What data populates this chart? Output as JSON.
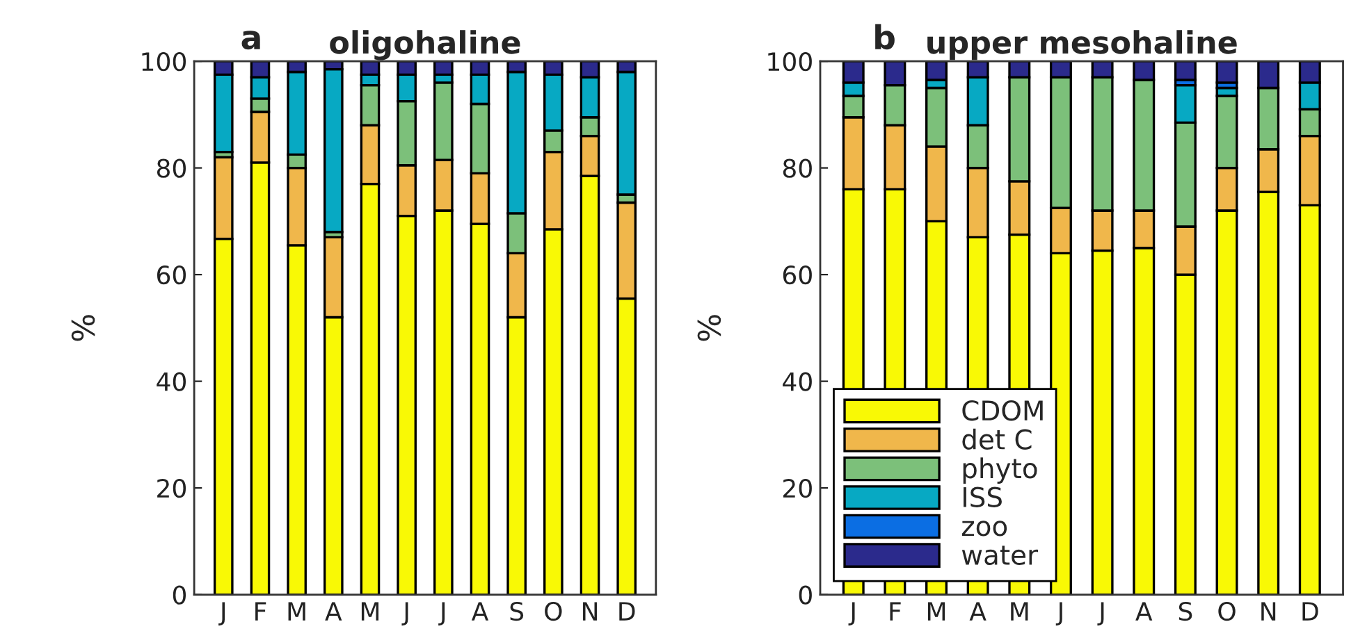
{
  "chart_data": [
    {
      "type": "bar",
      "stacked": true,
      "title": "oligohaline",
      "annotations": [
        "a"
      ],
      "ylabel": "%",
      "categories": [
        "J",
        "F",
        "M",
        "A",
        "M",
        "J",
        "J",
        "A",
        "S",
        "O",
        "N",
        "D"
      ],
      "ylim": [
        0,
        100
      ],
      "yticks": [
        0,
        20,
        40,
        60,
        80,
        100
      ],
      "grid": false,
      "legend": false,
      "series": [
        {
          "color": "#f9f905",
          "values": [
            66.7,
            81,
            65.5,
            52,
            77,
            71,
            72,
            69.5,
            52,
            68.5,
            78.5,
            55.5
          ]
        },
        {
          "color": "#f0b74b",
          "values": [
            15.3,
            9.5,
            14.5,
            15,
            11,
            9.5,
            9.5,
            9.5,
            12,
            14.5,
            7.5,
            18
          ]
        },
        {
          "color": "#7cc07a",
          "values": [
            1,
            2.5,
            2.5,
            1,
            7.5,
            12,
            14.5,
            13,
            7.5,
            4,
            3.5,
            1.5
          ]
        },
        {
          "color": "#07a9c3",
          "values": [
            14.5,
            4,
            15.5,
            30.5,
            2,
            5,
            1.5,
            5.5,
            26.5,
            10.5,
            7.5,
            23
          ]
        },
        {
          "color": "#2b2a8c",
          "values": [
            2.5,
            3,
            2,
            1.5,
            2.5,
            2.5,
            2.5,
            2.5,
            2,
            2.5,
            3,
            2
          ]
        }
      ]
    },
    {
      "type": "bar",
      "stacked": true,
      "title": "upper mesohaline",
      "annotations": [
        "b"
      ],
      "ylabel": "%",
      "categories": [
        "J",
        "F",
        "M",
        "A",
        "M",
        "J",
        "J",
        "A",
        "S",
        "O",
        "N",
        "D"
      ],
      "ylim": [
        0,
        100
      ],
      "yticks": [
        0,
        20,
        40,
        60,
        80,
        100
      ],
      "grid": false,
      "legend": "lower left",
      "series": [
        {
          "name": "CDOM",
          "color": "#f9f905",
          "values": [
            76,
            76,
            70,
            67,
            67.5,
            64,
            64.5,
            65,
            60,
            72,
            75.5,
            73
          ]
        },
        {
          "name": "det C",
          "color": "#f0b74b",
          "values": [
            13.5,
            12,
            14,
            13,
            10,
            8.5,
            7.5,
            7,
            9,
            8,
            8,
            13
          ]
        },
        {
          "name": "phyto",
          "color": "#7cc07a",
          "values": [
            4,
            7.5,
            11,
            8,
            19.5,
            24.5,
            25,
            24.5,
            19.5,
            13.5,
            11.5,
            5
          ]
        },
        {
          "name": "ISS",
          "color": "#07a9c3",
          "values": [
            2.5,
            null,
            1.5,
            9,
            null,
            null,
            null,
            null,
            7,
            1.5,
            null,
            5
          ]
        },
        {
          "name": "zoo",
          "color": "#0b6ee3",
          "values": [
            null,
            null,
            null,
            null,
            null,
            null,
            null,
            null,
            1,
            1,
            null,
            null
          ]
        },
        {
          "name": "water",
          "color": "#2b2a8c",
          "values": [
            4,
            4.5,
            3.5,
            3,
            3,
            3,
            3,
            3.5,
            3.5,
            4,
            5,
            4
          ]
        }
      ]
    }
  ]
}
